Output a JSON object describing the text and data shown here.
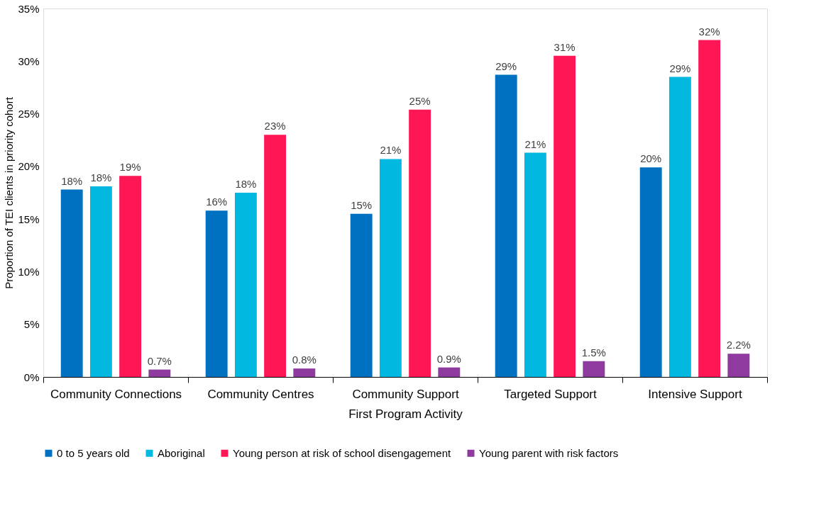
{
  "chart_data": {
    "type": "bar",
    "xlabel": "First Program Activity",
    "ylabel": "Proportion of TEI clients in priority cohort",
    "categories": [
      "Community Connections",
      "Community Centres",
      "Community Support",
      "Targeted Support",
      "Intensive Support"
    ],
    "series": [
      {
        "name": "0 to 5 years old",
        "color": "#0070c0",
        "values": [
          17.8,
          15.8,
          15.5,
          28.7,
          19.9
        ],
        "value_labels": [
          "18%",
          "16%",
          "15%",
          "29%",
          "20%"
        ]
      },
      {
        "name": "Aboriginal",
        "color": "#00b8e0",
        "values": [
          18.1,
          17.5,
          20.7,
          21.3,
          28.5
        ],
        "value_labels": [
          "18%",
          "18%",
          "21%",
          "21%",
          "29%"
        ]
      },
      {
        "name": "Young person at risk of school disengagement",
        "color": "#ff1654",
        "values": [
          19.1,
          23.0,
          25.4,
          30.5,
          32.0
        ],
        "value_labels": [
          "19%",
          "23%",
          "25%",
          "31%",
          "32%"
        ]
      },
      {
        "name": "Young parent with risk factors",
        "color": "#8e3a9e",
        "values": [
          0.7,
          0.8,
          0.9,
          1.5,
          2.2
        ],
        "value_labels": [
          "0.7%",
          "0.8%",
          "0.9%",
          "1.5%",
          "2.2%"
        ]
      }
    ],
    "ylim": [
      0,
      35
    ],
    "yticks": [
      {
        "value": 0,
        "label": "0%"
      },
      {
        "value": 5,
        "label": "5%"
      },
      {
        "value": 10,
        "label": "10%"
      },
      {
        "value": 15,
        "label": "15%"
      },
      {
        "value": 20,
        "label": "20%"
      },
      {
        "value": 25,
        "label": "25%"
      },
      {
        "value": 30,
        "label": "30%"
      },
      {
        "value": 35,
        "label": "35%"
      }
    ],
    "grid": false,
    "legend": "bottom"
  }
}
